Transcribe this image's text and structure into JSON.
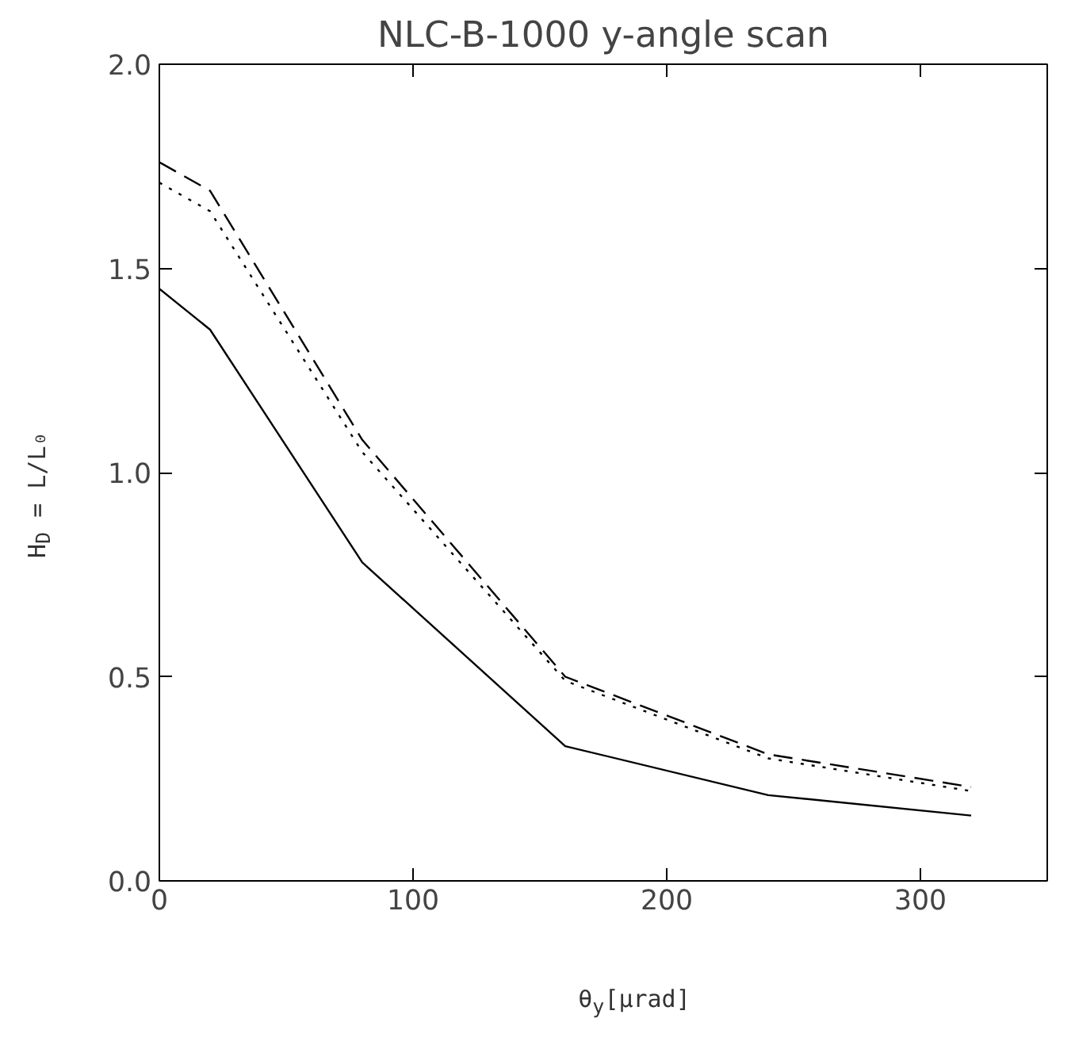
{
  "chart_data": {
    "type": "line",
    "title": "NLC-B-1000 y-angle scan",
    "xlabel": "θ$_{y}$[μrad]",
    "ylabel": "H$_{D}$ = L/L₀",
    "x": [
      0,
      20,
      80,
      160,
      240,
      320
    ],
    "series": [
      {
        "color": "#000000",
        "line_style": "solid",
        "values": [
          1.45,
          1.35,
          0.78,
          0.33,
          0.21,
          0.16
        ]
      },
      {
        "color": "#000000",
        "line_style": "dashed",
        "values": [
          1.76,
          1.69,
          1.08,
          0.5,
          0.31,
          0.23
        ]
      },
      {
        "color": "#000000",
        "line_style": "dotted",
        "values": [
          1.71,
          1.64,
          1.05,
          0.49,
          0.3,
          0.22
        ]
      }
    ],
    "xlim": [
      0,
      350
    ],
    "ylim": [
      0,
      2.0
    ],
    "xticks": [
      0,
      100,
      200,
      300
    ],
    "yticks": [
      {
        "value": 0,
        "label": "0.0"
      },
      {
        "value": 0.5,
        "label": "0.5"
      },
      {
        "value": 1.0,
        "label": "1.0"
      },
      {
        "value": 1.5,
        "label": "1.5"
      },
      {
        "value": 2.0,
        "label": "2.0"
      }
    ],
    "grid": false,
    "marker": "none"
  }
}
